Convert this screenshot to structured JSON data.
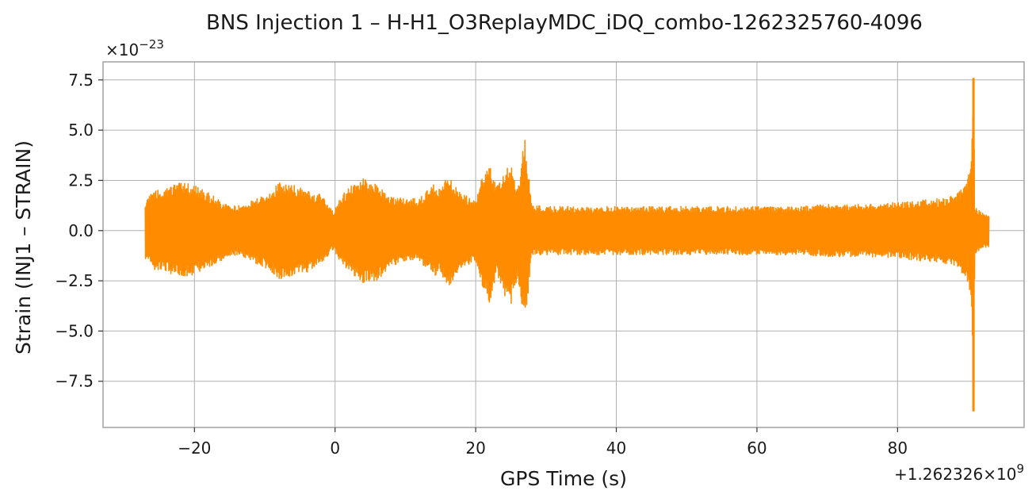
{
  "chart_data": {
    "type": "line",
    "title": "BNS Injection 1 – H-H1_O3ReplayMDC_iDQ_combo-1262325760-4096",
    "xlabel": "GPS Time (s)",
    "ylabel": "Strain (INJ1 – STRAIN)",
    "x_offset_label": "+1.262326×10",
    "x_offset_exponent": "9",
    "y_scale_label": "×10",
    "y_scale_exponent": "−23",
    "xlim": [
      -33,
      98
    ],
    "ylim": [
      -9.8,
      8.4
    ],
    "x_ticks": [
      -20,
      0,
      20,
      40,
      60,
      80
    ],
    "x_tick_labels": [
      "−20",
      "0",
      "20",
      "40",
      "60",
      "80"
    ],
    "y_ticks": [
      7.5,
      5.0,
      2.5,
      0.0,
      -2.5,
      -5.0,
      -7.5
    ],
    "y_tick_labels": [
      "7.5",
      "5.0",
      "2.5",
      "0.0",
      "−2.5",
      "−5.0",
      "−7.5"
    ],
    "grid": true,
    "series": [
      {
        "color": "#ff8c00",
        "envelope_x": [
          -27,
          -26,
          -24,
          -22,
          -20,
          -18,
          -16,
          -14,
          -12,
          -10,
          -8,
          -6,
          -4,
          -2,
          -0.2,
          0.5,
          2,
          4,
          6,
          8,
          10,
          12,
          14,
          15,
          16,
          17,
          18,
          19,
          20,
          21,
          22,
          23,
          24,
          25,
          26,
          26.5,
          27,
          27.5,
          28,
          30,
          35,
          40,
          45,
          50,
          55,
          60,
          65,
          70,
          75,
          80,
          83,
          86,
          88,
          89.5,
          90,
          90.5,
          90.8,
          91,
          92,
          93
        ],
        "envelope_upper": [
          1.6,
          1.9,
          2.2,
          2.4,
          2.3,
          1.9,
          1.4,
          1.2,
          1.5,
          1.8,
          2.4,
          2.3,
          2.0,
          1.8,
          0.9,
          1.5,
          2.2,
          2.6,
          2.3,
          1.7,
          1.6,
          1.6,
          2.3,
          2.1,
          2.8,
          2.3,
          1.8,
          1.7,
          1.5,
          2.8,
          3.3,
          2.2,
          3.0,
          3.4,
          2.0,
          3.6,
          4.8,
          3.0,
          1.3,
          1.2,
          1.2,
          1.2,
          1.2,
          1.2,
          1.2,
          1.2,
          1.2,
          1.3,
          1.3,
          1.4,
          1.5,
          1.6,
          1.8,
          2.2,
          2.8,
          3.5,
          7.6,
          1.2,
          0.9,
          0.8
        ],
        "envelope_lower": [
          -1.4,
          -1.9,
          -2.1,
          -2.3,
          -2.2,
          -1.9,
          -1.5,
          -1.2,
          -1.5,
          -1.9,
          -2.4,
          -2.4,
          -2.1,
          -1.7,
          -0.9,
          -1.4,
          -2.1,
          -2.6,
          -2.5,
          -1.8,
          -1.5,
          -1.5,
          -2.3,
          -2.1,
          -2.8,
          -2.4,
          -1.8,
          -1.7,
          -1.5,
          -3.0,
          -3.6,
          -2.2,
          -3.2,
          -3.8,
          -2.2,
          -3.8,
          -4.7,
          -3.0,
          -1.2,
          -1.2,
          -1.2,
          -1.2,
          -1.2,
          -1.2,
          -1.2,
          -1.2,
          -1.2,
          -1.3,
          -1.3,
          -1.4,
          -1.5,
          -1.6,
          -1.8,
          -2.2,
          -2.8,
          -3.5,
          -9.0,
          -1.2,
          -0.9,
          -0.8
        ]
      }
    ]
  }
}
